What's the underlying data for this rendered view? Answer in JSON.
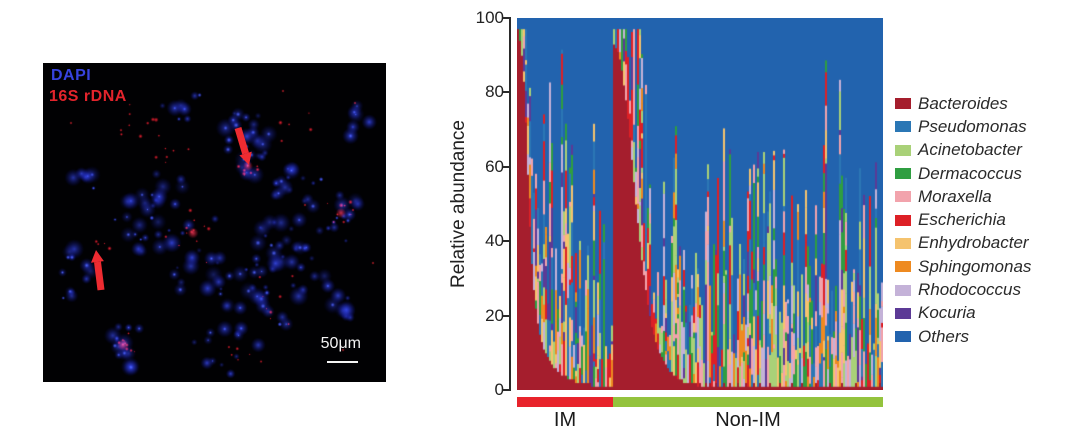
{
  "micrograph": {
    "stain_label": "DAPI",
    "probe_label": "16S rDNA",
    "stain_label_color": "#3743de",
    "probe_label_color": "#e3242c",
    "scale_bar_label": "50μm",
    "arrow_color": "#ee2b31"
  },
  "chart_data": {
    "type": "stacked-bar",
    "title": "",
    "xlabel": "",
    "ylabel": "Relative abundance",
    "ylim": [
      0,
      100
    ],
    "ytick_labels": [
      "100",
      "80",
      "60",
      "40",
      "20",
      "0"
    ],
    "legend_position": "right",
    "seed": 7,
    "taxa": [
      {
        "name": "Bacteroides",
        "color": "#a51e2d"
      },
      {
        "name": "Pseudomonas",
        "color": "#2b77b5"
      },
      {
        "name": "Acinetobacter",
        "color": "#a9d178"
      },
      {
        "name": "Dermacoccus",
        "color": "#2f9e41"
      },
      {
        "name": "Moraxella",
        "color": "#f2a3ac"
      },
      {
        "name": "Escherichia",
        "color": "#dd2026"
      },
      {
        "name": "Enhydrobacter",
        "color": "#f5c36e"
      },
      {
        "name": "Sphingomonas",
        "color": "#ee8a20"
      },
      {
        "name": "Rhodococcus",
        "color": "#c4b2d8"
      },
      {
        "name": "Kocuria",
        "color": "#5c3a96"
      },
      {
        "name": "Others",
        "color": "#2263ae"
      }
    ],
    "groups": [
      {
        "label": "IM",
        "band_color": "#e8232b",
        "n_samples": 48,
        "bacteroides_pct": [
          97,
          94,
          90,
          83,
          72,
          58,
          44,
          34,
          27,
          22,
          18,
          15,
          13,
          11,
          10,
          9,
          8,
          7,
          6,
          6,
          5,
          5,
          4,
          4,
          4,
          3,
          3,
          3,
          3,
          2,
          2,
          2,
          2,
          2,
          2,
          2,
          2,
          1,
          1,
          1,
          1,
          1,
          1,
          1,
          1,
          1,
          1,
          1
        ]
      },
      {
        "label": "Non-IM",
        "band_color": "#94c33d",
        "n_samples": 135,
        "bacteroides_pct": [
          93,
          92,
          91,
          89,
          86,
          82,
          78,
          73,
          68,
          62,
          56,
          50,
          45,
          40,
          35,
          31,
          27,
          23,
          20,
          17,
          15,
          13,
          11,
          10,
          9,
          8,
          7,
          6,
          5,
          5,
          4,
          4,
          3,
          3,
          3,
          2,
          2,
          2,
          2,
          2,
          2,
          2,
          1,
          2,
          1,
          1,
          2,
          1,
          2,
          1,
          1,
          2,
          1,
          1,
          1,
          2,
          1,
          1,
          2,
          1,
          1,
          1,
          2,
          1,
          1,
          1,
          2,
          1,
          1,
          1,
          2,
          1,
          1,
          2,
          1,
          1,
          1,
          1,
          2,
          1,
          1,
          1,
          1,
          2,
          1,
          1,
          1,
          1,
          1,
          2,
          1,
          1,
          1,
          1,
          2,
          1,
          1,
          1,
          1,
          1,
          1,
          2,
          1,
          1,
          1,
          1,
          1,
          1,
          2,
          1,
          1,
          1,
          1,
          1,
          2,
          1,
          1,
          1,
          1,
          1,
          1,
          2,
          1,
          1,
          1,
          1,
          1,
          1,
          1,
          1,
          1,
          1,
          1,
          2,
          1
        ]
      }
    ]
  }
}
